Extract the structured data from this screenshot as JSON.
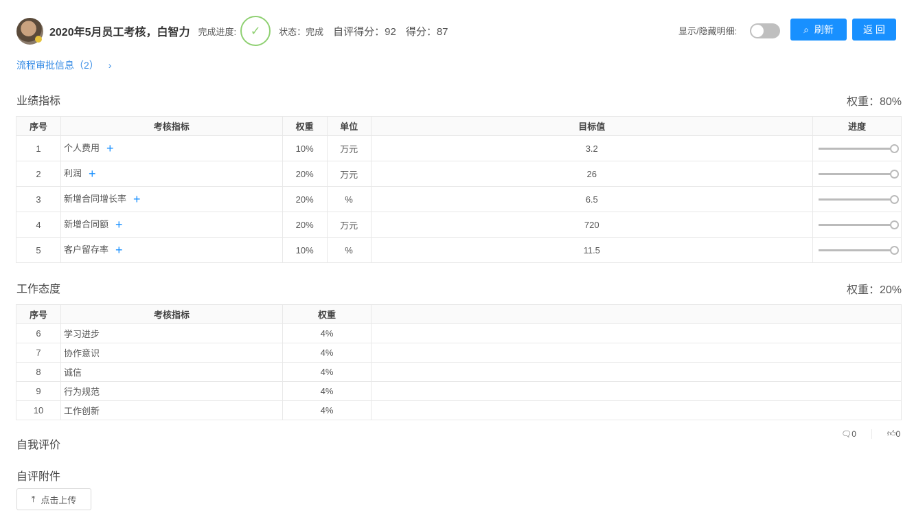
{
  "header": {
    "title": "2020年5月员工考核，白智力",
    "progress_label": "完成进度:",
    "status": "状态：完成",
    "self_score": "自评得分：92",
    "score": "得分：87",
    "toggle_label": "显示/隐藏明细:",
    "toggle_on": false,
    "refresh": "刷新",
    "back": "返 回"
  },
  "approval_link": "流程审批信息（2）",
  "performance": {
    "title": "业绩指标",
    "weight": "权重：80%",
    "columns": [
      "序号",
      "考核指标",
      "权重",
      "单位",
      "目标值",
      "进度"
    ],
    "rows": [
      {
        "no": "1",
        "name": "个人费用",
        "weight": "10%",
        "unit": "万元",
        "target": "3.2",
        "progress": 100
      },
      {
        "no": "2",
        "name": "利润",
        "weight": "20%",
        "unit": "万元",
        "target": "26",
        "progress": 100
      },
      {
        "no": "3",
        "name": "新增合同增长率",
        "weight": "20%",
        "unit": "%",
        "target": "6.5",
        "progress": 100
      },
      {
        "no": "4",
        "name": "新增合同额",
        "weight": "20%",
        "unit": "万元",
        "target": "720",
        "progress": 100
      },
      {
        "no": "5",
        "name": "客户留存率",
        "weight": "10%",
        "unit": "%",
        "target": "11.5",
        "progress": 100
      }
    ]
  },
  "attitude": {
    "title": "工作态度",
    "weight": "权重：20%",
    "columns": [
      "序号",
      "考核指标",
      "权重"
    ],
    "rows": [
      {
        "no": "6",
        "name": "学习进步",
        "weight": "4%"
      },
      {
        "no": "7",
        "name": "协作意识",
        "weight": "4%"
      },
      {
        "no": "8",
        "name": "诚信",
        "weight": "4%"
      },
      {
        "no": "9",
        "name": "行为规范",
        "weight": "4%"
      },
      {
        "no": "10",
        "name": "工作创新",
        "weight": "4%"
      }
    ]
  },
  "self_eval": {
    "title": "自我评价",
    "comments": "0",
    "likes": "0"
  },
  "attachments": {
    "title": "自评附件",
    "upload": "点击上传"
  },
  "colors": {
    "primary": "#1890ff",
    "success": "#8fd072",
    "link": "#3a8ee6"
  }
}
